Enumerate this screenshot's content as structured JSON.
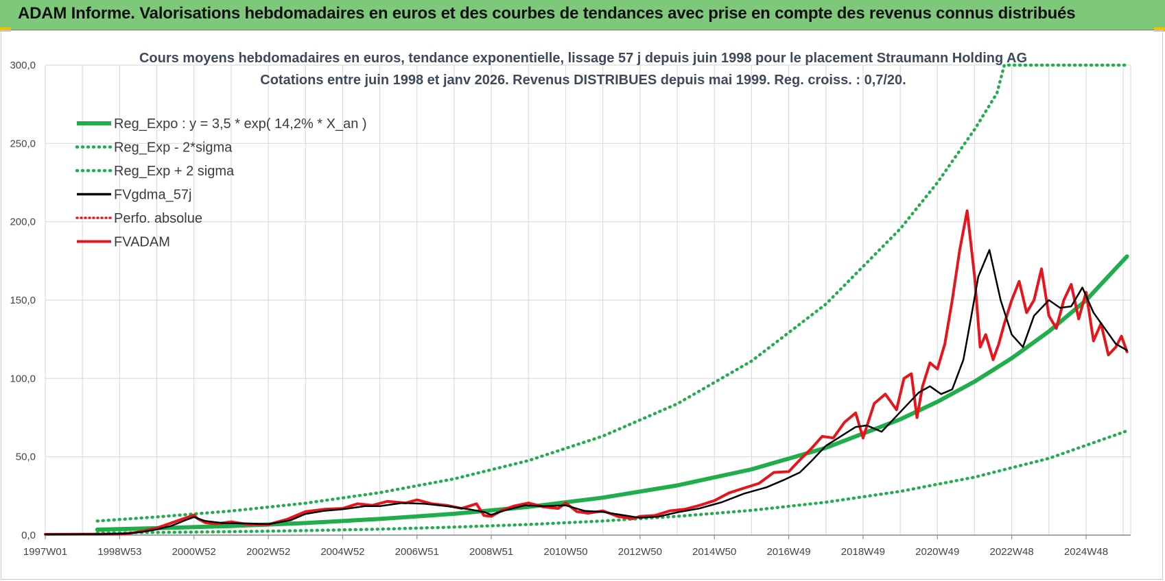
{
  "banner": {
    "title": "ADAM Informe. Valorisations hebdomadaires en euros et des courbes de tendances avec prise en compte des revenus connus distribués"
  },
  "colors": {
    "banner_bg": "#7ec87a",
    "green": "#1fae4b",
    "red": "#e8141b",
    "black": "#000000",
    "grid": "#dcdcdc"
  },
  "chart_data": {
    "type": "line",
    "title": "Cours moyens hebdomadaires en euros, tendance exponentielle, lissage 57 j depuis juin 1998 pour le placement Straumann Holding AG",
    "subtitle": "Cotations entre juin 1998 et janv 2026.  Revenus DISTRIBUES  depuis mai 1999.  Reg.  croiss. : 0,7/20.",
    "xlabel": "",
    "ylabel": "",
    "ylim": [
      0,
      300
    ],
    "xlim": [
      1997.0,
      2026.2
    ],
    "grid": true,
    "legend_position": "top-left",
    "y_ticks": [
      "0,0",
      "50,0",
      "100,0",
      "150,0",
      "200,0",
      "250,0",
      "300,0"
    ],
    "x_ticks": [
      {
        "label": "1997W01",
        "x": 1997.0
      },
      {
        "label": "1998W53",
        "x": 1999.0
      },
      {
        "label": "2000W52",
        "x": 2001.0
      },
      {
        "label": "2002W52",
        "x": 2003.0
      },
      {
        "label": "2004W52",
        "x": 2005.0
      },
      {
        "label": "2006W51",
        "x": 2007.0
      },
      {
        "label": "2008W51",
        "x": 2009.0
      },
      {
        "label": "2010W50",
        "x": 2011.0
      },
      {
        "label": "2012W50",
        "x": 2013.0
      },
      {
        "label": "2014W50",
        "x": 2015.0
      },
      {
        "label": "2016W49",
        "x": 2017.0
      },
      {
        "label": "2018W49",
        "x": 2019.0
      },
      {
        "label": "2020W49",
        "x": 2021.0
      },
      {
        "label": "2022W48",
        "x": 2023.0
      },
      {
        "label": "2024W48",
        "x": 2025.0
      }
    ],
    "series": [
      {
        "name": "Reg_Expo : y = 3,5 * exp( 14,2% *  X_an )",
        "style": "solid-green",
        "x": [
          1998.4,
          2000,
          2002,
          2004,
          2006,
          2008,
          2010,
          2012,
          2014,
          2016,
          2018,
          2020,
          2021,
          2022,
          2023,
          2024,
          2025,
          2026.1
        ],
        "y": [
          3.5,
          4.4,
          5.8,
          7.7,
          10.3,
          13.6,
          18.0,
          23.9,
          31.7,
          42.0,
          55.7,
          73.9,
          85.1,
          98.0,
          112.9,
          130.0,
          149.9,
          177.9
        ]
      },
      {
        "name": "Reg_Exp - 2*sigma",
        "style": "dotted-green",
        "x": [
          1998.4,
          2000,
          2002,
          2004,
          2006,
          2008,
          2010,
          2012,
          2014,
          2016,
          2018,
          2020,
          2022,
          2024,
          2026.1
        ],
        "y": [
          1.3,
          1.7,
          2.2,
          2.9,
          3.8,
          5.1,
          6.8,
          9.0,
          12.0,
          15.8,
          21.0,
          27.9,
          37.0,
          49.0,
          66.5
        ]
      },
      {
        "name": "Reg_Exp + 2 sigma",
        "style": "dotted-green",
        "x": [
          1998.4,
          2000,
          2002,
          2004,
          2006,
          2008,
          2010,
          2012,
          2014,
          2016,
          2018,
          2020,
          2021,
          2022,
          2022.6,
          2022.8,
          2023,
          2024,
          2026.1
        ],
        "y": [
          9.0,
          11.6,
          15.4,
          20.4,
          27.1,
          35.9,
          47.6,
          63.2,
          83.8,
          111.1,
          147.4,
          195.5,
          225.0,
          259.0,
          282.0,
          300,
          300,
          300,
          300
        ]
      },
      {
        "name": "FVgdma_57j",
        "style": "solid-black",
        "x": [
          1997.0,
          1998.5,
          1999.2,
          1999.6,
          2000.0,
          2000.4,
          2000.8,
          2001.0,
          2001.3,
          2001.8,
          2002.4,
          2003.0,
          2003.6,
          2004.0,
          2004.5,
          2005.0,
          2005.6,
          2006.0,
          2006.6,
          2007.2,
          2007.8,
          2008.4,
          2008.8,
          2009.0,
          2009.4,
          2009.9,
          2010.4,
          2011.0,
          2011.5,
          2012.0,
          2012.6,
          2013.0,
          2013.5,
          2014.0,
          2014.6,
          2015.2,
          2015.8,
          2016.4,
          2016.9,
          2017.3,
          2017.6,
          2018.0,
          2018.4,
          2018.8,
          2019.1,
          2019.5,
          2019.9,
          2020.3,
          2020.5,
          2020.8,
          2021.1,
          2021.4,
          2021.7,
          2021.9,
          2022.1,
          2022.4,
          2022.7,
          2023.0,
          2023.3,
          2023.6,
          2024.0,
          2024.3,
          2024.6,
          2024.9,
          2025.2,
          2025.5,
          2025.8,
          2026.1
        ],
        "y": [
          0.5,
          0.6,
          1.0,
          2.0,
          3.6,
          6.0,
          9.8,
          11.5,
          9.0,
          7.6,
          7.5,
          7.0,
          9.5,
          13.5,
          15.5,
          16.5,
          18.5,
          18.5,
          20.5,
          20.0,
          18.5,
          16.5,
          14.8,
          13.0,
          16.0,
          19.0,
          18.5,
          19.0,
          15.5,
          14.8,
          12.5,
          11.0,
          11.8,
          14.5,
          17.0,
          21.0,
          26.5,
          30.5,
          35.5,
          40.0,
          47.0,
          57.0,
          63.0,
          69.0,
          70.0,
          66.0,
          76.0,
          86.0,
          91.0,
          95.0,
          90.0,
          93.0,
          112.0,
          138.0,
          165.0,
          182.0,
          150.0,
          128.0,
          120.0,
          140.0,
          150.0,
          145.0,
          146.0,
          158.0,
          142.0,
          132.0,
          122.0,
          118.0
        ]
      },
      {
        "name": "Perfo. absolue",
        "style": "dotted-red",
        "x": [
          1997.0,
          1998.5,
          1999.2,
          1999.6,
          2000.0,
          2000.4,
          2000.8,
          2001.0,
          2001.3,
          2001.8,
          2002.4,
          2003.0,
          2003.6,
          2004.0,
          2004.5,
          2005.0,
          2005.6,
          2006.0,
          2006.6,
          2007.2,
          2007.8,
          2008.4,
          2008.8,
          2009.0,
          2009.4,
          2009.9,
          2010.4,
          2011.0,
          2011.5,
          2012.0,
          2012.6,
          2013.0,
          2013.5,
          2014.0,
          2014.6,
          2015.2,
          2015.8,
          2016.4,
          2016.9,
          2017.3,
          2017.6,
          2018.0,
          2018.4,
          2018.8,
          2019.1,
          2019.5,
          2019.9,
          2020.3,
          2020.5,
          2020.8,
          2021.1,
          2021.4,
          2021.7,
          2021.9,
          2022.1,
          2022.4,
          2022.7,
          2023.0,
          2023.3,
          2023.6,
          2024.0,
          2024.3,
          2024.6,
          2024.9,
          2025.2,
          2025.5,
          2025.8,
          2026.1
        ],
        "y": [
          0.5,
          0.6,
          1.0,
          2.0,
          3.6,
          6.0,
          9.8,
          11.5,
          9.0,
          7.6,
          7.5,
          7.0,
          9.5,
          13.5,
          15.5,
          16.5,
          18.5,
          18.5,
          20.5,
          20.0,
          18.5,
          16.5,
          14.8,
          13.0,
          16.0,
          19.0,
          18.5,
          19.0,
          15.5,
          14.8,
          12.5,
          11.0,
          11.8,
          14.5,
          17.0,
          21.0,
          26.5,
          30.5,
          35.5,
          40.0,
          47.0,
          57.0,
          63.0,
          69.0,
          70.0,
          66.0,
          76.0,
          86.0,
          91.0,
          95.0,
          90.0,
          93.0,
          112.0,
          138.0,
          165.0,
          182.0,
          150.0,
          128.0,
          120.0,
          140.0,
          150.0,
          145.0,
          146.0,
          158.0,
          142.0,
          132.0,
          122.0,
          118.0
        ]
      },
      {
        "name": "FVADAM",
        "style": "solid-red",
        "x": [
          1997.0,
          1998.5,
          1999.0,
          1999.3,
          1999.6,
          2000.0,
          2000.3,
          2000.6,
          2000.9,
          2001.0,
          2001.1,
          2001.3,
          2001.6,
          2002.0,
          2002.4,
          2003.0,
          2003.5,
          2004.0,
          2004.5,
          2005.0,
          2005.4,
          2005.8,
          2006.2,
          2006.7,
          2007.0,
          2007.4,
          2007.8,
          2008.2,
          2008.6,
          2008.8,
          2009.0,
          2009.3,
          2009.6,
          2010.0,
          2010.4,
          2010.8,
          2011.0,
          2011.3,
          2011.6,
          2012.0,
          2012.4,
          2012.8,
          2013.0,
          2013.4,
          2013.8,
          2014.2,
          2014.6,
          2015.0,
          2015.4,
          2015.8,
          2016.2,
          2016.6,
          2017.0,
          2017.3,
          2017.6,
          2017.9,
          2018.2,
          2018.5,
          2018.8,
          2019.0,
          2019.3,
          2019.6,
          2019.9,
          2020.1,
          2020.3,
          2020.45,
          2020.6,
          2020.8,
          2021.0,
          2021.2,
          2021.4,
          2021.6,
          2021.8,
          2022.0,
          2022.15,
          2022.3,
          2022.5,
          2022.65,
          2022.8,
          2023.0,
          2023.2,
          2023.4,
          2023.6,
          2023.8,
          2024.0,
          2024.2,
          2024.4,
          2024.6,
          2024.8,
          2025.0,
          2025.2,
          2025.4,
          2025.6,
          2025.8,
          2025.95,
          2026.1
        ],
        "y": [
          0.5,
          0.6,
          0.8,
          1.2,
          2.5,
          4.5,
          7.0,
          9.5,
          12.0,
          12.8,
          10.5,
          8.0,
          7.2,
          8.5,
          7.0,
          6.8,
          10.0,
          15.0,
          16.5,
          17.0,
          20.0,
          19.0,
          21.5,
          20.5,
          22.5,
          20.0,
          19.0,
          17.0,
          20.0,
          12.5,
          12.0,
          16.0,
          18.5,
          20.5,
          18.0,
          17.0,
          20.5,
          15.0,
          14.0,
          15.5,
          12.0,
          10.5,
          12.0,
          12.5,
          15.5,
          16.5,
          19.0,
          22.0,
          27.0,
          30.0,
          33.0,
          40.0,
          40.5,
          48.0,
          55.0,
          63.0,
          62.0,
          72.0,
          78.0,
          62.0,
          84.0,
          90.0,
          80.0,
          100.0,
          103.0,
          75.0,
          95.0,
          110.0,
          106.0,
          122.0,
          150.0,
          182.0,
          207.0,
          165.0,
          120.0,
          128.0,
          112.0,
          122.0,
          135.0,
          150.0,
          162.0,
          142.0,
          150.0,
          170.0,
          140.0,
          132.0,
          150.0,
          160.0,
          138.0,
          155.0,
          124.0,
          135.0,
          115.0,
          120.0,
          127.0,
          117.0
        ]
      }
    ]
  }
}
